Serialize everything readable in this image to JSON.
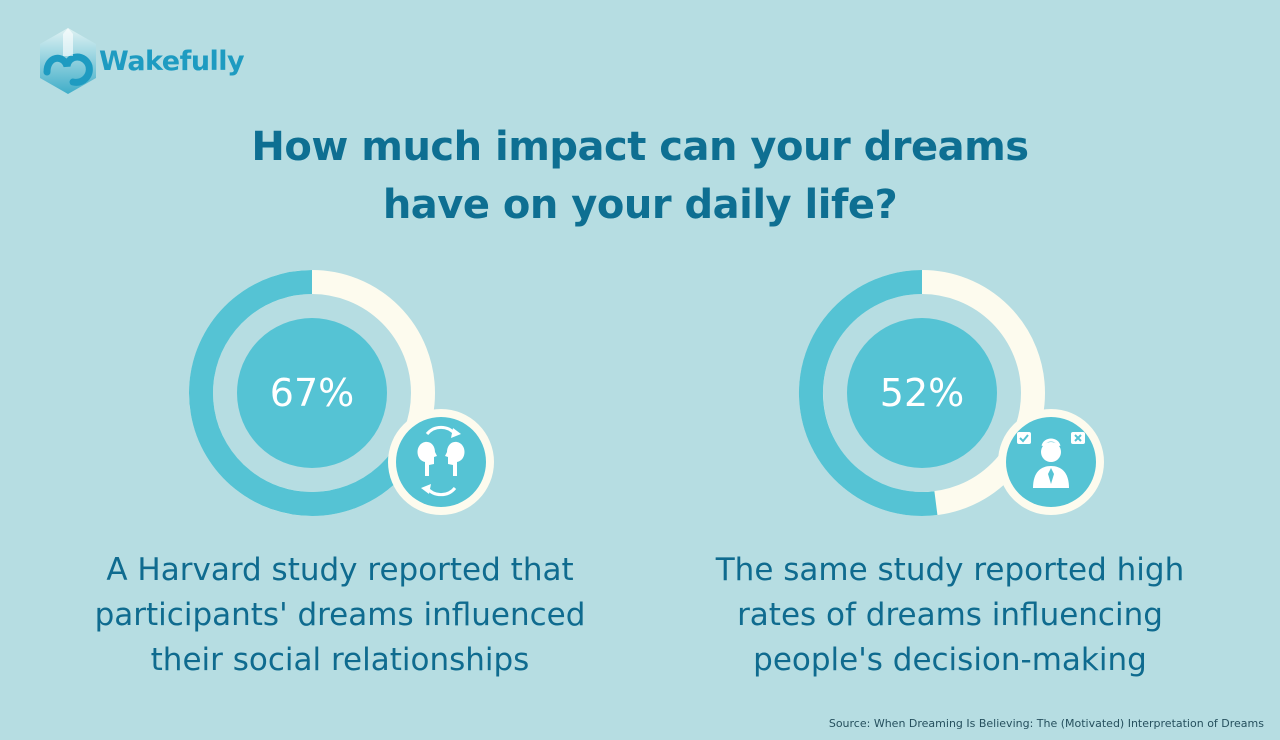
{
  "brand": {
    "name": "Wakefully"
  },
  "headline": {
    "line1": "How much impact can your dreams",
    "line2": "have on your daily life?"
  },
  "colors": {
    "background": "#b6dde2",
    "accent": "#55c3d4",
    "track": "#fdfbee",
    "headline": "#0e6f92",
    "caption": "#0f6b8f"
  },
  "chart_data": [
    {
      "type": "pie",
      "style": "donut",
      "value": 67,
      "label": "67%",
      "icon": "social-relationships-icon",
      "caption": {
        "line1": "A Harvard study reported that",
        "line2": "participants' dreams influenced",
        "line3": "their social relationships"
      }
    },
    {
      "type": "pie",
      "style": "donut",
      "value": 52,
      "label": "52%",
      "icon": "decision-making-icon",
      "caption": {
        "line1": "The same study reported high",
        "line2": "rates of dreams influencing",
        "line3": "people's decision-making"
      }
    }
  ],
  "source": "Source: When Dreaming Is Believing: The (Motivated) Interpretation of Dreams"
}
